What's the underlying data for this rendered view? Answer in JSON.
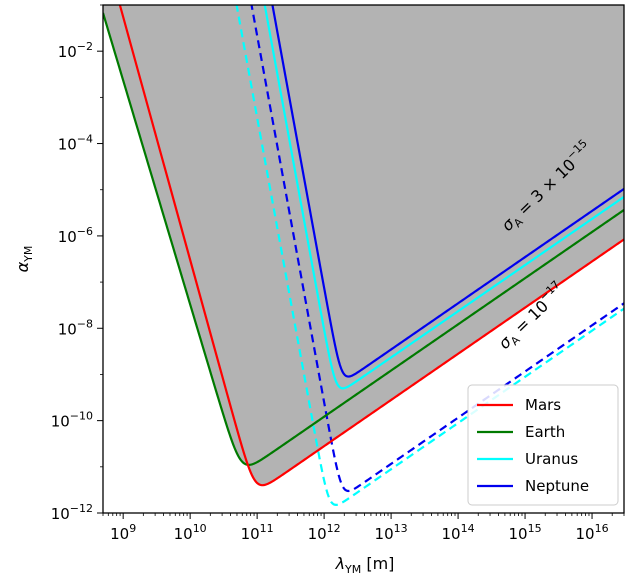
{
  "chart_data": {
    "type": "line",
    "xlabel": {
      "main": "λ",
      "sub": "YM",
      "unit": " [m]"
    },
    "ylabel": {
      "main": "α",
      "sub": "YM"
    },
    "x_scale": "log",
    "y_scale": "log",
    "xlim": [
      500000000.0,
      3e+16
    ],
    "ylim": [
      1e-12,
      0.1
    ],
    "x_ticks": [
      {
        "base": "10",
        "exp": "9"
      },
      {
        "base": "10",
        "exp": "10"
      },
      {
        "base": "10",
        "exp": "11"
      },
      {
        "base": "10",
        "exp": "12"
      },
      {
        "base": "10",
        "exp": "13"
      },
      {
        "base": "10",
        "exp": "14"
      },
      {
        "base": "10",
        "exp": "15"
      },
      {
        "base": "10",
        "exp": "16"
      }
    ],
    "y_ticks": [
      {
        "base": "10",
        "exp": "−2"
      },
      {
        "base": "10",
        "exp": "−4"
      },
      {
        "base": "10",
        "exp": "−6"
      },
      {
        "base": "10",
        "exp": "−8"
      },
      {
        "base": "10",
        "exp": "−10"
      },
      {
        "base": "10",
        "exp": "−12"
      }
    ],
    "grid": false,
    "legend_position": "bottom-right",
    "shaded_region": {
      "color": "#b3b3b3",
      "bounded_by": "union of solid curves (excluded region)"
    },
    "series": [
      {
        "name": "Mars",
        "color": "#ff0000",
        "min_lambda": 120000000000.0,
        "min_alpha": 4e-12,
        "slope_left": 5.26,
        "slope_right": 1.0,
        "solid": true,
        "dashed": false
      },
      {
        "name": "Earth",
        "color": "#007a00",
        "min_lambda": 75000000000.0,
        "min_alpha": 1.1e-11,
        "slope_left": 4.85,
        "slope_right": 1.0,
        "solid": true,
        "dashed": false
      },
      {
        "name": "Uranus",
        "color": "#00ffff",
        "min_lambda": 1900000000000.0,
        "min_alpha": 5e-10,
        "slope_left": 7.94,
        "slope_right": 1.0,
        "solid": true,
        "dashed": true,
        "dashed_min_lambda": 1500000000000.0,
        "dashed_min_alpha": 1.5e-12
      },
      {
        "name": "Neptune",
        "color": "#0000ee",
        "min_lambda": 2300000000000.0,
        "min_alpha": 9e-10,
        "slope_left": 7.94,
        "slope_right": 1.0,
        "solid": true,
        "dashed": true,
        "dashed_min_lambda": 2300000000000.0,
        "dashed_min_alpha": 3e-12
      }
    ],
    "annotations": [
      {
        "text_main": "σ",
        "text_sub": "A",
        "text_rest": " = 3 × 10",
        "text_exp": "−15",
        "rotation_deg": -44
      },
      {
        "text_main": "σ",
        "text_sub": "A",
        "text_rest": " = 10",
        "text_exp": "−17",
        "rotation_deg": -44
      }
    ]
  }
}
